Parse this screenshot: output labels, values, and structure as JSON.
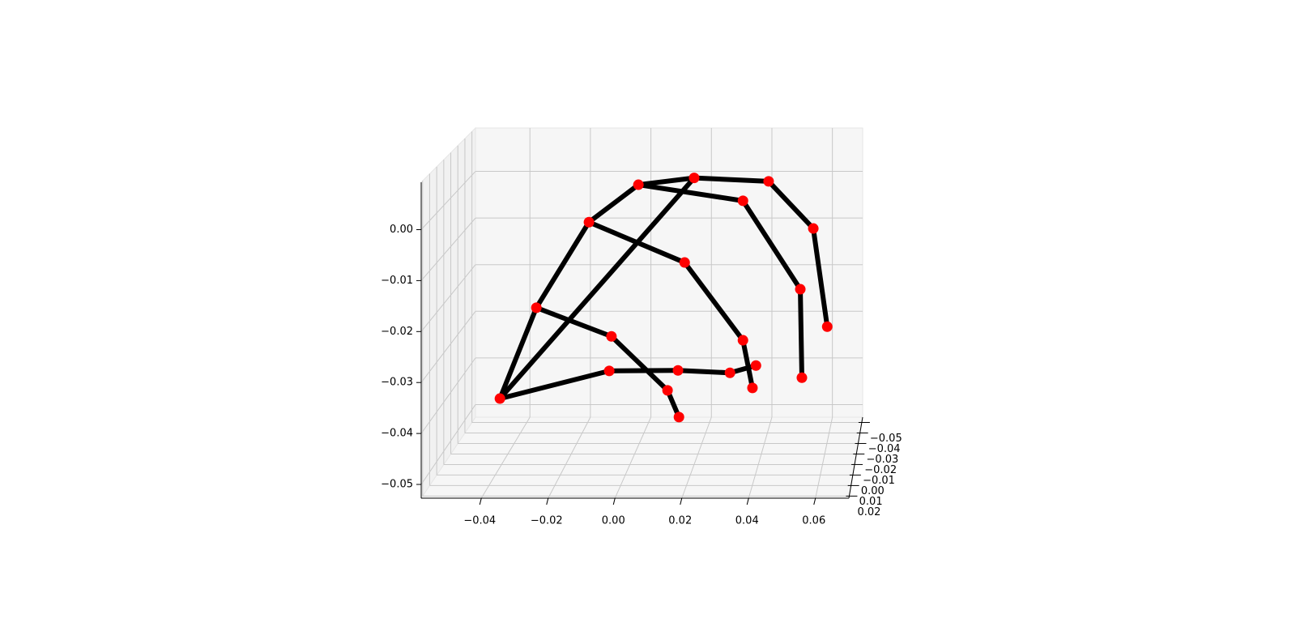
{
  "chart_data": {
    "type": "skeleton3d",
    "x": [
      -0.0425,
      -0.008,
      0.0137,
      0.0301,
      0.0383,
      -0.031,
      -0.0073,
      0.0104,
      0.014,
      -0.0144,
      0.0158,
      0.0342,
      0.0372,
      0.0012,
      0.0342,
      0.0523,
      0.0528,
      0.0188,
      0.0423,
      0.0564,
      0.0608
    ],
    "y": [
      -0.02,
      -0.02,
      -0.02,
      -0.02,
      -0.02,
      -0.02,
      -0.02,
      -0.02,
      -0.02,
      -0.02,
      -0.02,
      -0.02,
      -0.02,
      -0.02,
      -0.02,
      -0.02,
      -0.02,
      -0.02,
      -0.02,
      -0.02,
      -0.02
    ],
    "z": [
      -0.0413,
      -0.0356,
      -0.0355,
      -0.036,
      -0.0345,
      -0.0226,
      -0.0285,
      -0.0396,
      -0.0451,
      -0.005,
      -0.0133,
      -0.0293,
      -0.0391,
      0.0027,
      -0.0006,
      -0.0188,
      -0.037,
      0.0041,
      0.0034,
      -0.0063,
      -0.0265
    ],
    "connections": [
      [
        0,
        1
      ],
      [
        1,
        2
      ],
      [
        2,
        3
      ],
      [
        3,
        4
      ],
      [
        0,
        5
      ],
      [
        5,
        6
      ],
      [
        6,
        7
      ],
      [
        7,
        8
      ],
      [
        5,
        9
      ],
      [
        9,
        10
      ],
      [
        10,
        11
      ],
      [
        11,
        12
      ],
      [
        9,
        13
      ],
      [
        13,
        14
      ],
      [
        14,
        15
      ],
      [
        15,
        16
      ],
      [
        13,
        17
      ],
      [
        0,
        17
      ],
      [
        17,
        18
      ],
      [
        18,
        19
      ],
      [
        19,
        20
      ]
    ],
    "point_color": "#ff0000",
    "line_color": "#000000",
    "xlim": [
      -0.058,
      0.07
    ],
    "ylim": [
      -0.055,
      0.022
    ],
    "zlim": [
      -0.0527,
      0.0093
    ],
    "xticks": [
      {
        "value": -0.04,
        "label": "−0.04"
      },
      {
        "value": -0.02,
        "label": "−0.02"
      },
      {
        "value": 0,
        "label": "0.00"
      },
      0.02,
      0.04,
      0.06
    ],
    "yticks": [
      {
        "value": -0.05,
        "label": "−0.05"
      },
      {
        "value": -0.04,
        "label": "−0.04"
      },
      {
        "value": -0.03,
        "label": "−0.03"
      },
      {
        "value": -0.02,
        "label": "−0.02"
      },
      {
        "value": -0.01,
        "label": "−0.01"
      },
      {
        "value": 0,
        "label": "0.00"
      },
      0.01,
      0.02
    ],
    "zticks": [
      {
        "value": -0.05,
        "label": "−0.05"
      },
      {
        "value": -0.04,
        "label": "−0.04"
      },
      {
        "value": -0.03,
        "label": "−0.03"
      },
      {
        "value": -0.02,
        "label": "−0.02"
      },
      {
        "value": -0.01,
        "label": "−0.01"
      },
      {
        "value": 0,
        "label": "0.00"
      }
    ],
    "grid": true
  }
}
